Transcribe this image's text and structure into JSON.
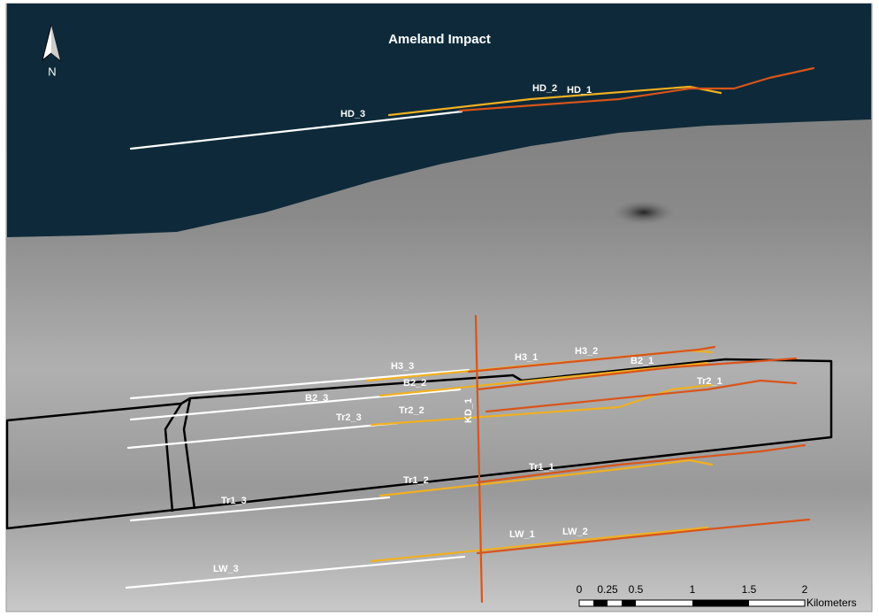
{
  "map": {
    "title": "Ameland Impact",
    "north": "N",
    "labels": {
      "hd_3": "HD_3",
      "hd_2": "HD_2",
      "hd_1": "HD_1",
      "h3_3": "H3_3",
      "h3_1": "H3_1",
      "h3_2": "H3_2",
      "b2_1": "B2_1",
      "b2_2": "B2_2",
      "b2_3": "B2_3",
      "tr2_3": "Tr2_3",
      "tr2_2": "Tr2_2",
      "tr2_1": "Tr2_1",
      "kd_1": "KD_1",
      "tr1_2": "Tr1_2",
      "tr1_1": "Tr1_1",
      "tr1_3": "Tr1_3",
      "lw_1": "LW_1",
      "lw_2": "LW_2",
      "lw_3": "LW_3"
    },
    "scale_bar": {
      "ticks": [
        "0",
        "0.25",
        "0.5",
        "1",
        "1.5",
        "2"
      ],
      "unit": "Kilometers"
    }
  }
}
